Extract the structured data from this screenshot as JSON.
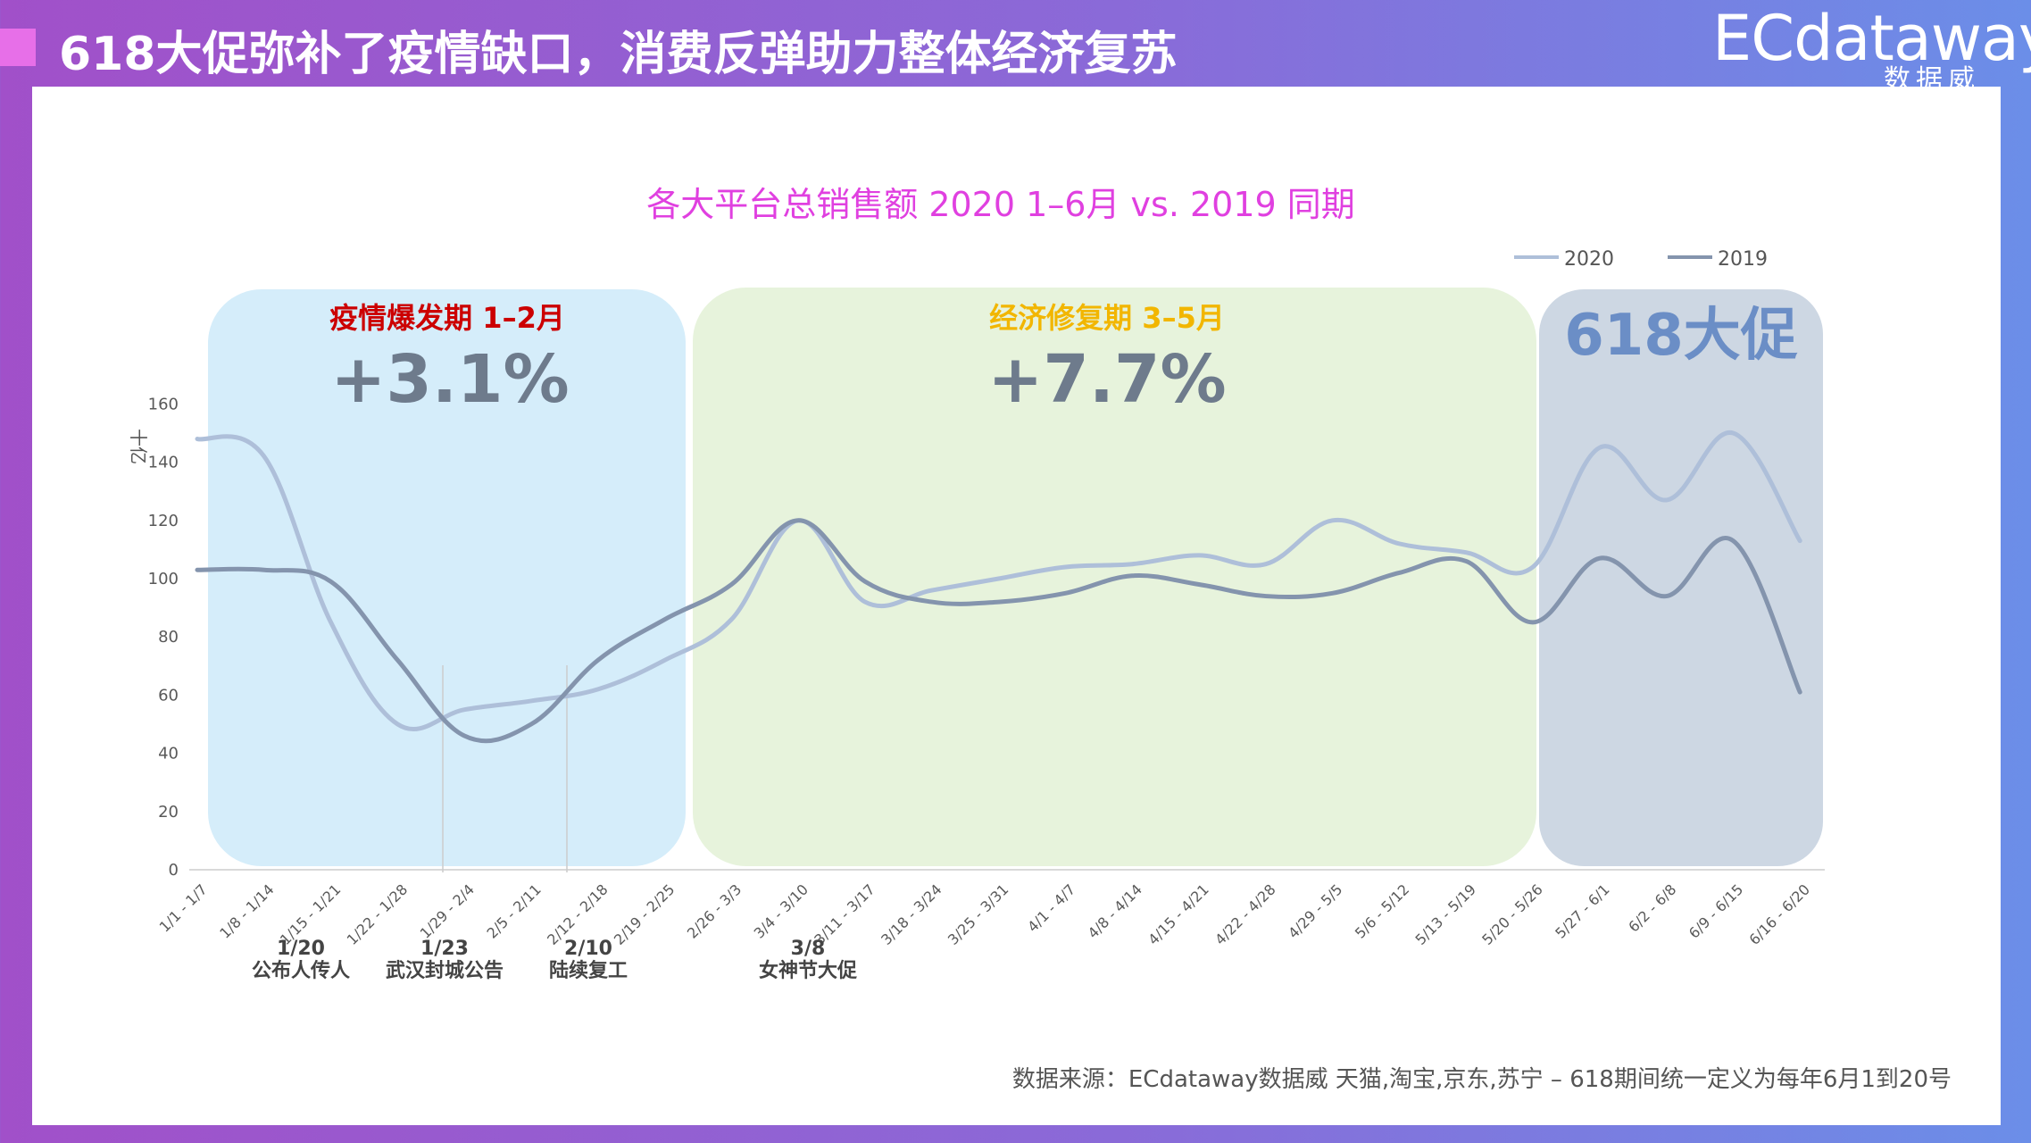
{
  "header": {
    "title": "618大促弥补了疫情缺口，消费反弹助力整体经济复苏"
  },
  "logo": {
    "main_text": "ECdataway",
    "sub_text": "数据威"
  },
  "colors": {
    "series_2020": "#aebfd9",
    "series_2019": "#8494ad",
    "accent_title": "#e040e0",
    "phase1_bg": "#d5edfa",
    "phase2_bg": "#e7f3dc",
    "phase3_bg": "#cdd7e3",
    "phase1_label": "#cc0000",
    "phase2_label": "#f2b600",
    "phase3_value": "#6b8ec6",
    "pct_text": "#6e7b8c"
  },
  "phases": [
    {
      "label": "疫情爆发期 1–2月",
      "value": "+3.1%"
    },
    {
      "label": "经济修复期 3–5月",
      "value": "+7.7%"
    },
    {
      "label": "",
      "value": "618大促"
    }
  ],
  "events": [
    {
      "date": "1/20",
      "text": "公布人传人"
    },
    {
      "date": "1/23",
      "text": "武汉封城公告"
    },
    {
      "date": "2/10",
      "text": "陆续复工"
    },
    {
      "date": "3/8",
      "text": "女神节大促"
    }
  ],
  "chart_data": {
    "type": "line",
    "title": "各大平台总销售额 2020 1–6月 vs. 2019 同期",
    "ylabel": "十亿",
    "xlabel": "",
    "ylim": [
      0,
      160
    ],
    "yticks": [
      0,
      20,
      40,
      60,
      80,
      100,
      120,
      140,
      160
    ],
    "legend_position": "top-right",
    "categories": [
      "1/1 - 1/7",
      "1/8 - 1/14",
      "1/15 - 1/21",
      "1/22 - 1/28",
      "1/29 - 2/4",
      "2/5 - 2/11",
      "2/12 - 2/18",
      "2/19 - 2/25",
      "2/26 - 3/3",
      "3/4 - 3/10",
      "3/11 - 3/17",
      "3/18 - 3/24",
      "3/25 - 3/31",
      "4/1 - 4/7",
      "4/8 - 4/14",
      "4/15 - 4/21",
      "4/22 - 4/28",
      "4/29 - 5/5",
      "5/6 - 5/12",
      "5/13 - 5/19",
      "5/20 - 5/26",
      "5/27 - 6/1",
      "6/2 - 6/8",
      "6/9 - 6/15",
      "6/16 - 6/20"
    ],
    "series": [
      {
        "name": "2020",
        "values": [
          148,
          142,
          85,
          50,
          55,
          58,
          62,
          72,
          86,
          120,
          92,
          96,
          100,
          104,
          105,
          108,
          105,
          120,
          112,
          109,
          104,
          145,
          127,
          150,
          113
        ]
      },
      {
        "name": "2019",
        "values": [
          103,
          103,
          99,
          72,
          46,
          50,
          72,
          86,
          98,
          120,
          99,
          92,
          92,
          95,
          101,
          98,
          94,
          95,
          102,
          106,
          85,
          107,
          94,
          113,
          61
        ]
      }
    ]
  },
  "footer": {
    "source": "数据来源：ECdataway数据威 天猫,淘宝,京东,苏宁 – 618期间统一定义为每年6月1到20号"
  }
}
